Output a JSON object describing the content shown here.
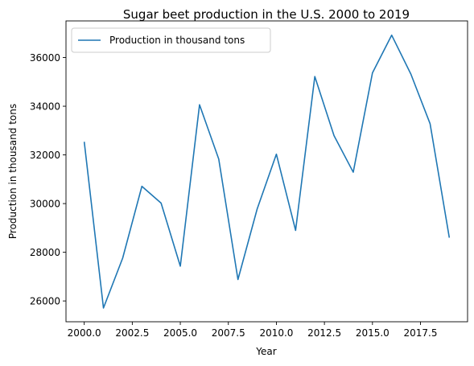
{
  "chart_data": {
    "type": "line",
    "title": "Sugar beet production in the U.S. 2000 to 2019",
    "xlabel": "Year",
    "ylabel": "Production in thousand tons",
    "xlim": [
      1999.05,
      2019.95
    ],
    "ylim": [
      25145,
      37505
    ],
    "x_ticks": [
      2000,
      2002.5,
      2005,
      2007.5,
      2010,
      2012.5,
      2015,
      2017.5
    ],
    "x_tick_labels": [
      "2000.0",
      "2002.5",
      "2005.0",
      "2007.5",
      "2010.0",
      "2012.5",
      "2015.0",
      "2017.5"
    ],
    "y_ticks": [
      26000,
      28000,
      30000,
      32000,
      34000,
      36000
    ],
    "y_tick_labels": [
      "26000",
      "28000",
      "30000",
      "32000",
      "34000",
      "36000"
    ],
    "grid": false,
    "legend_position": "top-left",
    "color": "#1f77b4",
    "series": [
      {
        "name": "Production in thousand tons",
        "x": [
          2000,
          2001,
          2002,
          2003,
          2004,
          2005,
          2006,
          2007,
          2008,
          2009,
          2010,
          2011,
          2012,
          2013,
          2014,
          2015,
          2016,
          2017,
          2018,
          2019
        ],
        "y": [
          32540,
          25710,
          27760,
          30710,
          30020,
          27430,
          34060,
          31830,
          26880,
          29780,
          32030,
          28900,
          35220,
          32790,
          31290,
          35370,
          36920,
          35320,
          33280,
          28600
        ]
      }
    ]
  }
}
